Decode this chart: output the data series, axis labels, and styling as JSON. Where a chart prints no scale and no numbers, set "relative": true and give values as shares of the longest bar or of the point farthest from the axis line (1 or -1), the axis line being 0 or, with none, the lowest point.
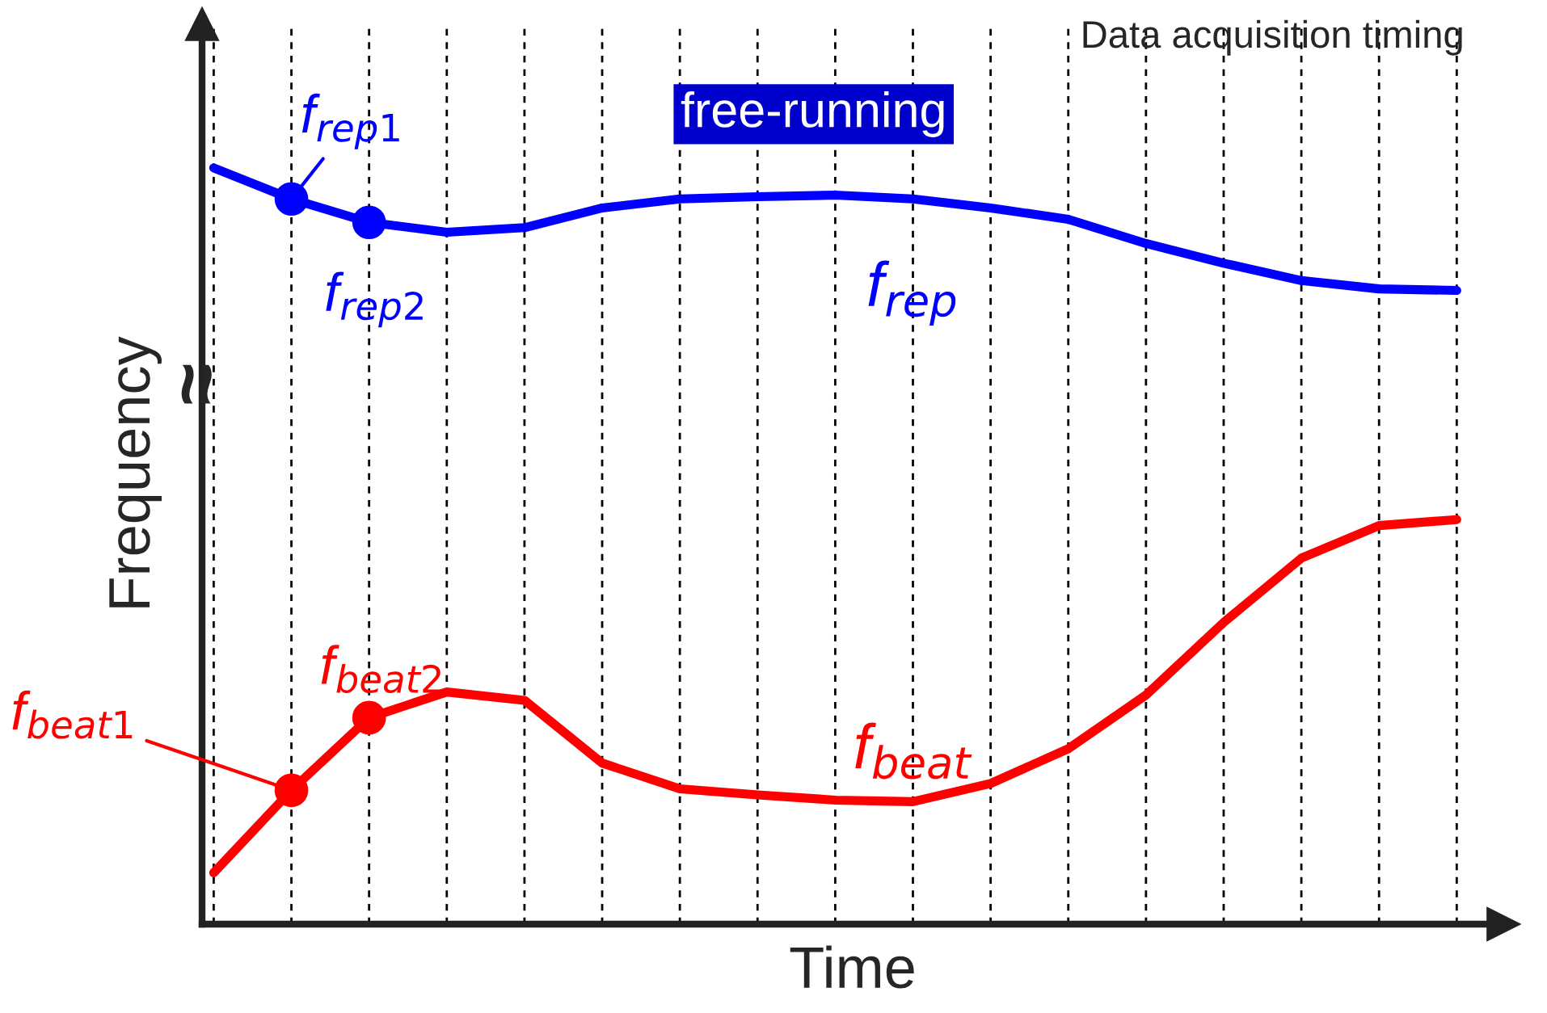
{
  "chart_data": {
    "type": "line",
    "relative": true,
    "xlabel": "Time",
    "ylabel": "Frequency",
    "grid": "x",
    "legend": false,
    "categories": [
      null,
      null,
      null,
      null,
      null,
      null,
      null,
      null,
      null,
      null,
      null,
      null,
      null,
      null,
      null,
      null,
      null
    ],
    "series": [
      {
        "name": "f$_{rep}$",
        "color": "#0000ff",
        "values": [
          1.0,
          0.959,
          0.928,
          0.915,
          0.921,
          0.947,
          0.959,
          0.962,
          0.964,
          0.959,
          0.947,
          0.932,
          0.9,
          0.874,
          0.851,
          0.84,
          0.838
        ]
      },
      {
        "name": "f$_{beat}$",
        "color": "#ff0000",
        "values": [
          0.068,
          0.177,
          0.273,
          0.307,
          0.296,
          0.213,
          0.179,
          0.171,
          0.164,
          0.162,
          0.186,
          0.232,
          0.303,
          0.399,
          0.484,
          0.527,
          0.535
        ]
      },
      {
        "name": "f$_{rep1}$",
        "type": "line",
        "marker": "circle",
        "color": "#0000ff",
        "values": [
          null,
          0.959,
          null,
          null,
          null,
          null,
          null,
          null,
          null,
          null,
          null,
          null,
          null,
          null,
          null,
          null,
          null
        ]
      },
      {
        "name": "f$_{rep2}$",
        "type": "line",
        "marker": "circle",
        "color": "#0000ff",
        "values": [
          null,
          null,
          0.928,
          null,
          null,
          null,
          null,
          null,
          null,
          null,
          null,
          null,
          null,
          null,
          null,
          null,
          null
        ]
      },
      {
        "name": "f$_{beat1}$",
        "type": "line",
        "marker": "circle",
        "color": "#ff0000",
        "values": [
          null,
          0.177,
          null,
          null,
          null,
          null,
          null,
          null,
          null,
          null,
          null,
          null,
          null,
          null,
          null,
          null,
          null
        ]
      },
      {
        "name": "f$_{beat2}$",
        "type": "line",
        "marker": "circle",
        "color": "#ff0000",
        "values": [
          null,
          null,
          0.273,
          null,
          null,
          null,
          null,
          null,
          null,
          null,
          null,
          null,
          null,
          null,
          null,
          null,
          null
        ]
      }
    ],
    "annotations": [
      "Data acquisition timing",
      "free-running",
      "≈"
    ]
  }
}
